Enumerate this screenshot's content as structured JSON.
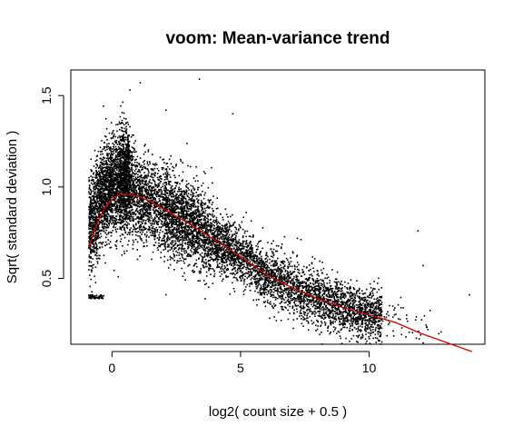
{
  "chart_data": {
    "type": "scatter",
    "title": "voom: Mean-variance trend",
    "xlabel": "log2( count size + 0.5 )",
    "ylabel": "Sqrt( standard deviation )",
    "xlim": [
      -1.6,
      14.5
    ],
    "ylim": [
      0.14,
      1.64
    ],
    "x_ticks": [
      0,
      5,
      10
    ],
    "x_tick_labels": [
      "0",
      "5",
      "10"
    ],
    "y_ticks": [
      0.5,
      1.0,
      1.5
    ],
    "y_tick_labels": [
      "0.5",
      "1.0",
      "1.5"
    ],
    "grid": false,
    "legend": "none",
    "point_color": "#000000",
    "series": [
      {
        "kind": "points",
        "description": "per-gene dense cloud (thousands of points, hump near x=0, decaying to ~0.3 by x=10)",
        "outliers": [
          {
            "x": 3.4,
            "y": 1.59
          },
          {
            "x": 1.1,
            "y": 1.57
          },
          {
            "x": 0.7,
            "y": 1.53
          },
          {
            "x": 4.7,
            "y": 1.4
          },
          {
            "x": 2.1,
            "y": 1.42
          },
          {
            "x": 13.9,
            "y": 0.41
          },
          {
            "x": 11.9,
            "y": 0.76
          },
          {
            "x": 12.1,
            "y": 0.57
          }
        ]
      },
      {
        "kind": "trend_line",
        "color": "#d40000",
        "x": [
          -0.9,
          -0.6,
          -0.3,
          0.0,
          0.3,
          0.6,
          1.0,
          1.5,
          2.0,
          3.0,
          4.0,
          5.0,
          6.0,
          7.0,
          8.0,
          9.0,
          10.0,
          11.0,
          12.0,
          13.0,
          14.0
        ],
        "y": [
          0.67,
          0.79,
          0.88,
          0.93,
          0.96,
          0.96,
          0.95,
          0.92,
          0.88,
          0.8,
          0.71,
          0.62,
          0.52,
          0.45,
          0.39,
          0.34,
          0.3,
          0.26,
          0.2,
          0.15,
          0.1
        ]
      }
    ]
  }
}
